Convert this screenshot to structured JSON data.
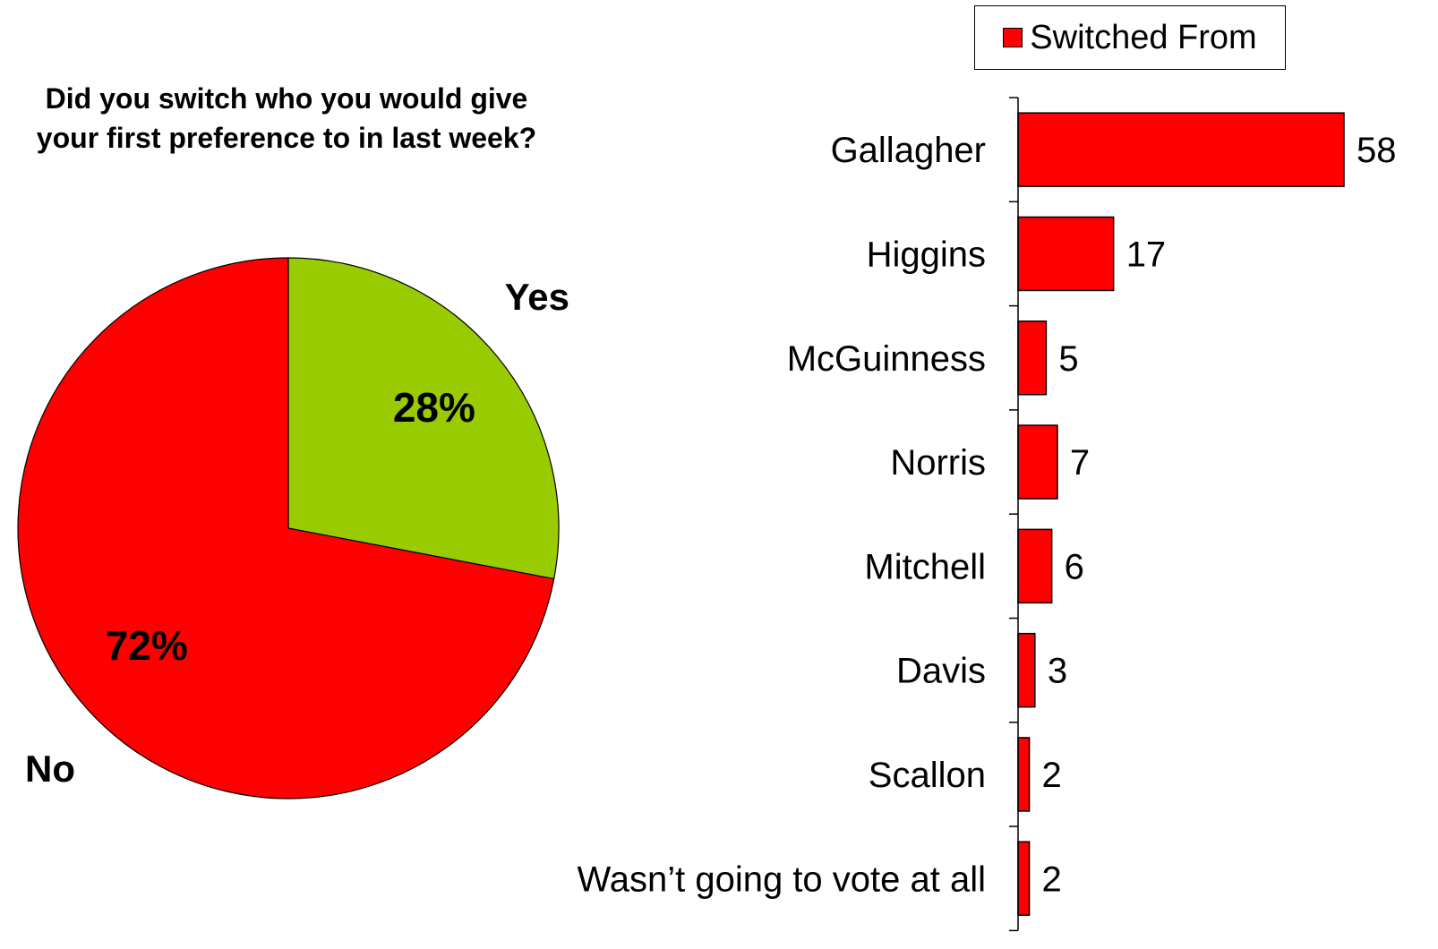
{
  "chart_data": [
    {
      "type": "pie",
      "title": "Did you switch who you would give your first preference to in last week?",
      "slices": [
        {
          "label": "Yes",
          "value": 28,
          "value_label": "28%",
          "color": "#99cc00"
        },
        {
          "label": "No",
          "value": 72,
          "value_label": "72%",
          "color": "#ff0000"
        }
      ]
    },
    {
      "type": "bar",
      "orientation": "horizontal",
      "categories": [
        "Gallagher",
        "Higgins",
        "McGuinness",
        "Norris",
        "Mitchell",
        "Davis",
        "Scallon",
        "Wasn’t going to vote at all"
      ],
      "series": [
        {
          "name": "Switched From",
          "values": [
            58,
            17,
            5,
            7,
            6,
            3,
            2,
            2
          ],
          "color": "#ff0000"
        }
      ],
      "legend": {
        "position": "top-right"
      }
    }
  ]
}
